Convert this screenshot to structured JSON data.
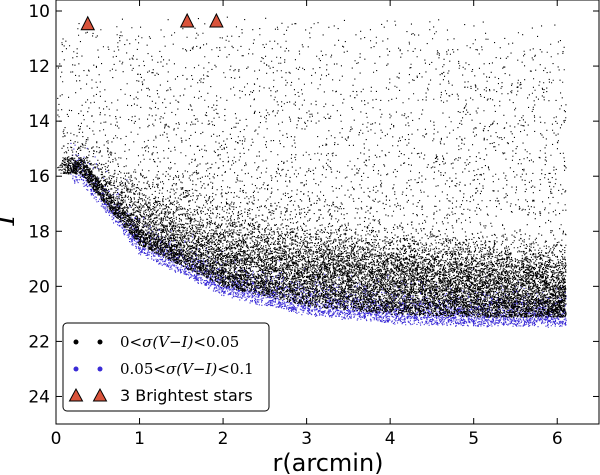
{
  "chart_data": {
    "type": "scatter",
    "title": "",
    "xlabel": "r(arcmin)",
    "ylabel": "I",
    "xlim": [
      0,
      6.5
    ],
    "ylim": [
      25,
      9.6
    ],
    "y_inverted": true,
    "xticks": [
      "0",
      "1",
      "2",
      "3",
      "4",
      "5",
      "6"
    ],
    "yticks": [
      "10",
      "12",
      "14",
      "16",
      "18",
      "20",
      "22",
      "24"
    ],
    "series": [
      {
        "name": "0<σ(V−I)<0.05",
        "color": "#000000",
        "marker": "point",
        "description_points": [
          [
            0.2,
            16.5
          ],
          [
            0.5,
            17.0
          ],
          [
            1.0,
            18.0
          ],
          [
            2.0,
            19.0
          ],
          [
            3.0,
            19.5
          ],
          [
            4.0,
            19.8
          ],
          [
            5.0,
            20.0
          ],
          [
            6.0,
            20.2
          ]
        ]
      },
      {
        "name": "0.05<σ(V−I)<0.1",
        "color": "#3a2bd6",
        "marker": "point",
        "description_points": [
          [
            0.3,
            16.2
          ],
          [
            0.5,
            17.0
          ],
          [
            1.0,
            18.8
          ],
          [
            2.0,
            20.3
          ],
          [
            3.0,
            21.0
          ],
          [
            4.0,
            21.3
          ],
          [
            5.0,
            21.4
          ],
          [
            6.0,
            21.4
          ]
        ]
      },
      {
        "name": "3 Brightest stars",
        "color": "#d9533b",
        "marker": "triangle",
        "x": [
          0.38,
          1.57,
          1.92
        ],
        "y": [
          10.5,
          10.4,
          10.4
        ]
      }
    ],
    "legend": {
      "position": "lower-left",
      "entries": [
        "0<σ(V−I)<0.05",
        "0.05<σ(V−I)<0.1",
        "3 Brightest stars"
      ]
    },
    "grid": false
  },
  "legend_labels": {
    "black_lead": "0",
    "black_mid": "<σ(V−I)<",
    "black_tail": "0.05",
    "blue_lead": "0.05",
    "blue_mid": "<σ(V−I)<",
    "blue_tail": "0.1",
    "tri": "3 Brightest stars"
  }
}
